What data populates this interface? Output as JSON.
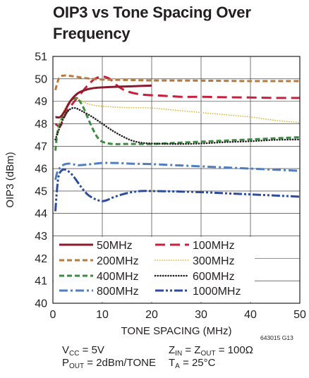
{
  "title_lines": [
    "OIP3 vs Tone Spacing Over",
    "Frequency"
  ],
  "figure_id": "643015 G13",
  "conditions": {
    "vcc": {
      "v": "V",
      "sub": "CC",
      "rest": " = 5V"
    },
    "pout": {
      "v": "P",
      "sub": "OUT",
      "rest": " = 2dBm/TONE"
    },
    "zin": {
      "v": "Z",
      "sub": "IN",
      "mid": " = Z",
      "sub2": "OUT",
      "rest": " = 100Ω"
    },
    "ta": {
      "v": "T",
      "sub": "A",
      "rest": " = 25°C"
    }
  },
  "chart_data": {
    "type": "line",
    "title": "OIP3 vs Tone Spacing Over Frequency",
    "xlabel": "TONE SPACING (MHz)",
    "ylabel": "OIP3 (dBm)",
    "xlim": [
      0,
      50
    ],
    "ylim": [
      40,
      51
    ],
    "xticks": [
      "0",
      "10",
      "20",
      "30",
      "40",
      "50"
    ],
    "yticks": [
      "40",
      "41",
      "42",
      "43",
      "44",
      "45",
      "46",
      "47",
      "48",
      "49",
      "50",
      "51"
    ],
    "grid": true,
    "legend_position": "bottom-left",
    "series": [
      {
        "name": "50MHz",
        "color": "#8b1a2e",
        "dash": "solid",
        "x": [
          0.5,
          1.5,
          2.5,
          3.5,
          5,
          6.5,
          8,
          10,
          13,
          16,
          20
        ],
        "y": [
          48.3,
          48.3,
          48.6,
          49.0,
          49.35,
          49.5,
          49.58,
          49.62,
          49.65,
          49.67,
          49.7
        ]
      },
      {
        "name": "100MHz",
        "color": "#c8203c",
        "dash": "longdash",
        "x": [
          0.5,
          1.5,
          2.5,
          4,
          5.5,
          7,
          8.5,
          10,
          11.5,
          13,
          15,
          18,
          22,
          26,
          30,
          35,
          40,
          45,
          50
        ],
        "y": [
          48.0,
          47.9,
          48.4,
          48.9,
          49.3,
          49.7,
          50.0,
          50.1,
          50.0,
          49.7,
          49.45,
          49.3,
          49.25,
          49.2,
          49.2,
          49.18,
          49.17,
          49.15,
          49.15
        ]
      },
      {
        "name": "200MHz",
        "color": "#b77a3d",
        "dash": "dash",
        "x": [
          0.5,
          1,
          1.5,
          2.5,
          4,
          6,
          8,
          10,
          15,
          20,
          30,
          40,
          50
        ],
        "y": [
          49.5,
          49.9,
          50.1,
          50.15,
          50.12,
          50.05,
          50.0,
          49.97,
          49.95,
          49.93,
          49.92,
          49.9,
          49.9
        ]
      },
      {
        "name": "300MHz",
        "color": "#e3b52e",
        "dash": "dot",
        "x": [
          0.5,
          1.5,
          3,
          4.5,
          5.5,
          7,
          9,
          12,
          15,
          20,
          25,
          30,
          35,
          40,
          45,
          50
        ],
        "y": [
          47.3,
          48.2,
          48.9,
          49.1,
          49.05,
          48.9,
          48.8,
          48.75,
          48.72,
          48.7,
          48.6,
          48.5,
          48.4,
          48.3,
          48.15,
          48.05
        ]
      },
      {
        "name": "400MHz",
        "color": "#3e8b44",
        "dash": "dash",
        "x": [
          0.5,
          1,
          2,
          3,
          4,
          5,
          6,
          7,
          8,
          9,
          10,
          12,
          15,
          20,
          25,
          30,
          35,
          40,
          45,
          50
        ],
        "y": [
          46.8,
          47.7,
          48.3,
          48.8,
          49.1,
          49.1,
          48.8,
          48.3,
          47.8,
          47.4,
          47.2,
          47.1,
          47.1,
          47.1,
          47.15,
          47.2,
          47.25,
          47.3,
          47.35,
          47.4
        ]
      },
      {
        "name": "600MHz",
        "color": "#231f20",
        "dash": "finedot",
        "x": [
          0.5,
          1.5,
          2.5,
          3.5,
          4.5,
          6,
          8,
          10,
          12,
          14,
          16,
          18,
          20,
          25,
          30,
          35,
          40,
          45,
          50
        ],
        "y": [
          47.3,
          47.9,
          48.4,
          48.65,
          48.7,
          48.55,
          48.3,
          48.0,
          47.7,
          47.45,
          47.25,
          47.15,
          47.12,
          47.1,
          47.12,
          47.18,
          47.22,
          47.28,
          47.3
        ]
      },
      {
        "name": "800MHz",
        "color": "#4f7fc0",
        "dash": "dashdot",
        "x": [
          0.5,
          1,
          2,
          3,
          4,
          5,
          7,
          10,
          13,
          16,
          20,
          25,
          30,
          35,
          40,
          45,
          50
        ],
        "y": [
          45.5,
          45.9,
          46.15,
          46.22,
          46.2,
          46.15,
          46.18,
          46.25,
          46.25,
          46.22,
          46.2,
          46.15,
          46.1,
          46.05,
          46.0,
          45.95,
          45.9
        ]
      },
      {
        "name": "1000MHz",
        "color": "#2c4d9e",
        "dash": "dashdotdot",
        "x": [
          0.5,
          0.8,
          1.2,
          2,
          3,
          4,
          5,
          6,
          7,
          8,
          9,
          10,
          11,
          12,
          14,
          16,
          18,
          20,
          25,
          30,
          35,
          40,
          45,
          50
        ],
        "y": [
          44.1,
          45.0,
          45.7,
          45.95,
          45.9,
          45.7,
          45.4,
          45.1,
          44.85,
          44.7,
          44.6,
          44.55,
          44.6,
          44.7,
          44.85,
          44.95,
          45.0,
          45.0,
          44.98,
          44.95,
          44.9,
          44.85,
          44.8,
          44.75
        ]
      }
    ]
  }
}
